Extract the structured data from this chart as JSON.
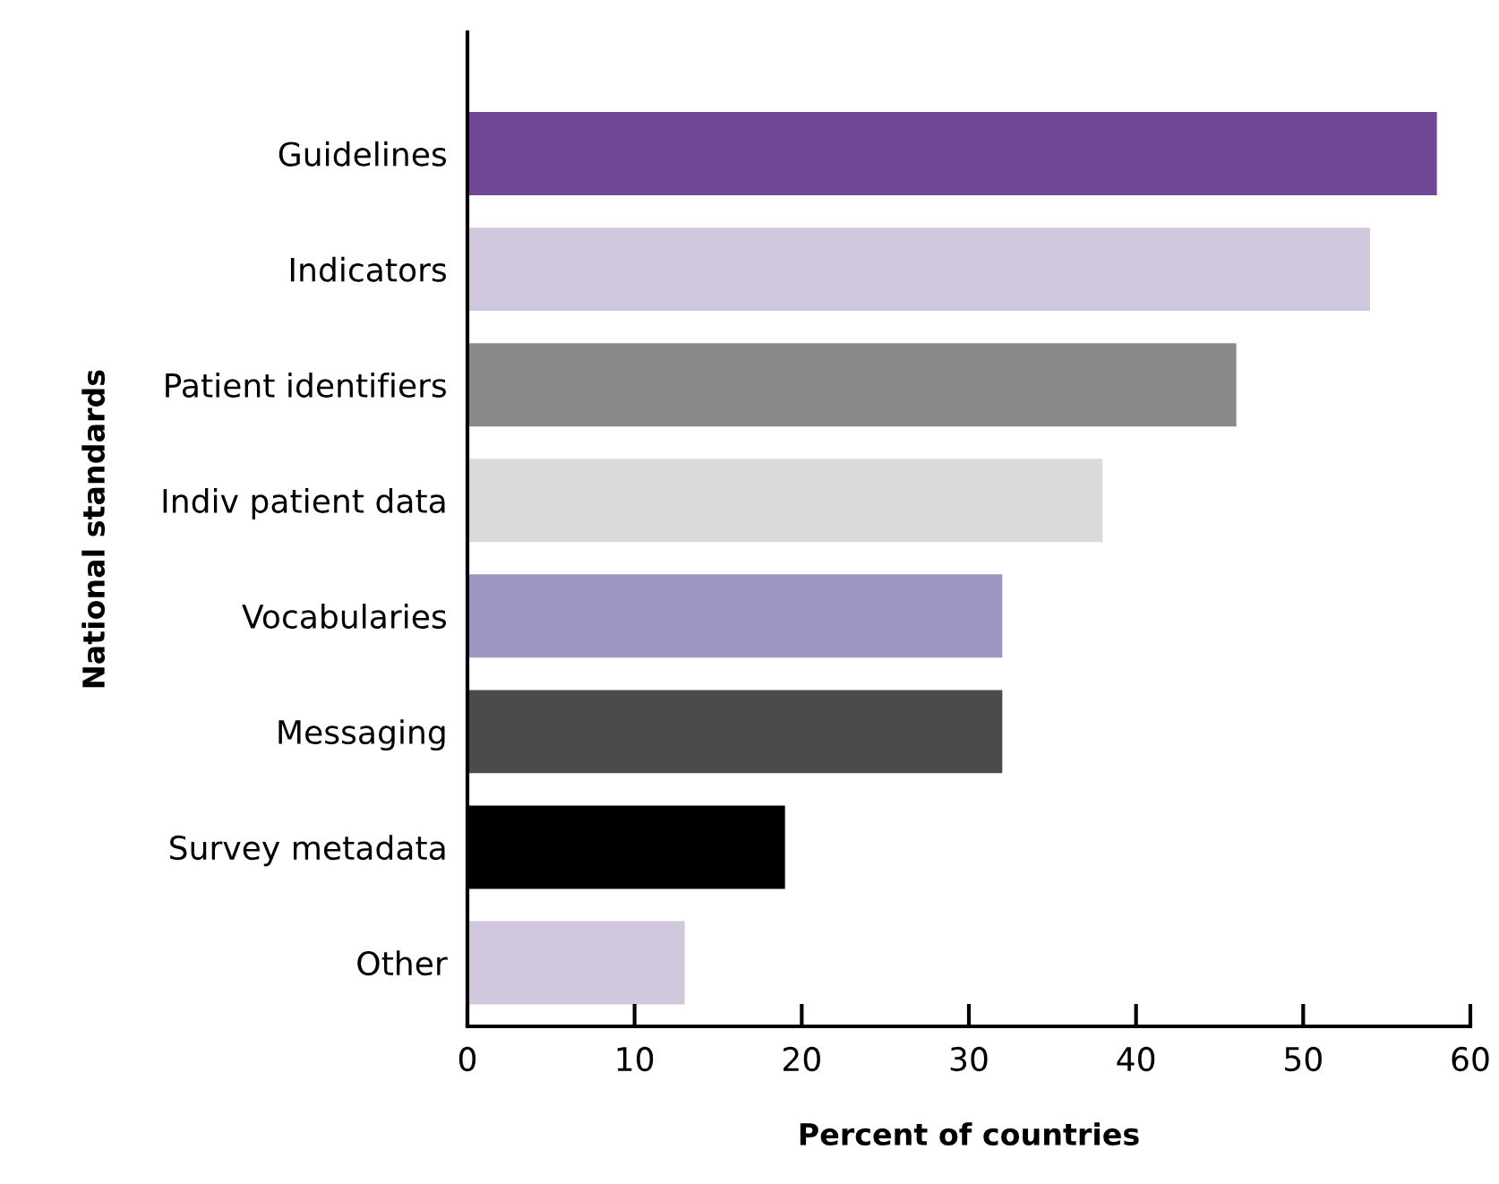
{
  "chart_data": {
    "type": "bar",
    "orientation": "horizontal",
    "xlabel": "Percent of countries",
    "ylabel": "National standards",
    "categories": [
      "Guidelines",
      "Indicators",
      "Patient identifiers",
      "Indiv patient data",
      "Vocabularies",
      "Messaging",
      "Survey metadata",
      "Other"
    ],
    "values": [
      58,
      54,
      46,
      38,
      32,
      32,
      19,
      13
    ],
    "colors": [
      "#6f4794",
      "#d2c8de",
      "#88898b",
      "#d9dadc",
      "#9d96c2",
      "#4b4b4d",
      "#000000",
      "#d2c8de"
    ],
    "xlim": [
      0,
      60
    ],
    "xticks": [
      0,
      10,
      20,
      30,
      40,
      50,
      60
    ],
    "grid": false
  }
}
